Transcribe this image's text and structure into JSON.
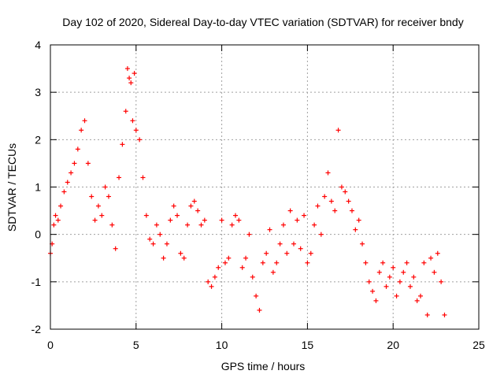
{
  "chart_data": {
    "type": "scatter",
    "title": "Day 102 of 2020, Sidereal Day-to-day VTEC variation (SDTVAR) for receiver bndy",
    "xlabel": "GPS time / hours",
    "ylabel": "SDTVAR / TECUs",
    "xlim": [
      0,
      25
    ],
    "ylim": [
      -2,
      4
    ],
    "xticks": [
      0,
      5,
      10,
      15,
      20,
      25
    ],
    "yticks": [
      -2,
      -1,
      0,
      1,
      2,
      3,
      4
    ],
    "grid": true,
    "marker": "+",
    "series": [
      {
        "name": "SDTVAR",
        "color": "#ff0000",
        "x": [
          0.0,
          0.1,
          0.2,
          0.3,
          0.45,
          0.6,
          0.8,
          1.0,
          1.2,
          1.4,
          1.6,
          1.8,
          2.0,
          2.2,
          2.4,
          2.6,
          2.8,
          3.0,
          3.2,
          3.4,
          3.6,
          3.8,
          4.0,
          4.2,
          4.4,
          4.5,
          4.6,
          4.7,
          4.8,
          4.9,
          5.0,
          5.2,
          5.4,
          5.6,
          5.8,
          6.0,
          6.2,
          6.4,
          6.6,
          6.8,
          7.0,
          7.2,
          7.4,
          7.6,
          7.8,
          8.0,
          8.2,
          8.4,
          8.6,
          8.8,
          9.0,
          9.2,
          9.4,
          9.6,
          9.8,
          10.0,
          10.2,
          10.4,
          10.6,
          10.8,
          11.0,
          11.2,
          11.4,
          11.6,
          11.8,
          12.0,
          12.2,
          12.4,
          12.6,
          12.8,
          13.0,
          13.2,
          13.4,
          13.6,
          13.8,
          14.0,
          14.2,
          14.4,
          14.6,
          14.8,
          15.0,
          15.2,
          15.4,
          15.6,
          15.8,
          16.0,
          16.2,
          16.4,
          16.6,
          16.8,
          17.0,
          17.2,
          17.4,
          17.6,
          17.8,
          18.0,
          18.2,
          18.4,
          18.6,
          18.8,
          19.0,
          19.2,
          19.4,
          19.6,
          19.8,
          20.0,
          20.2,
          20.4,
          20.6,
          20.8,
          21.0,
          21.2,
          21.4,
          21.6,
          21.8,
          22.0,
          22.2,
          22.4,
          22.6,
          22.8,
          23.0
        ],
        "y": [
          -0.4,
          -0.2,
          0.2,
          0.4,
          0.3,
          0.6,
          0.9,
          1.1,
          1.3,
          1.5,
          1.8,
          2.2,
          2.4,
          1.5,
          0.8,
          0.3,
          0.6,
          0.4,
          1.0,
          0.8,
          0.2,
          -0.3,
          1.2,
          1.9,
          2.6,
          3.5,
          3.3,
          3.2,
          2.4,
          3.4,
          2.2,
          2.0,
          1.2,
          0.4,
          -0.1,
          -0.2,
          0.2,
          0.0,
          -0.5,
          -0.2,
          0.3,
          0.6,
          0.4,
          -0.4,
          -0.5,
          0.2,
          0.6,
          0.7,
          0.5,
          0.2,
          0.3,
          -1.0,
          -1.1,
          -0.9,
          -0.7,
          0.3,
          -0.6,
          -0.5,
          0.2,
          0.4,
          0.3,
          -0.7,
          -0.5,
          0.0,
          -0.9,
          -1.3,
          -1.6,
          -0.6,
          -0.4,
          0.1,
          -0.8,
          -0.6,
          -0.2,
          0.2,
          -0.4,
          0.5,
          -0.2,
          0.3,
          -0.3,
          0.4,
          -0.6,
          -0.4,
          0.2,
          0.6,
          0.0,
          0.8,
          1.3,
          0.7,
          0.5,
          2.2,
          1.0,
          0.9,
          0.7,
          0.5,
          0.1,
          0.3,
          -0.2,
          -0.6,
          -1.0,
          -1.2,
          -1.4,
          -0.8,
          -0.6,
          -1.1,
          -0.9,
          -0.7,
          -1.3,
          -1.0,
          -0.8,
          -0.6,
          -1.1,
          -0.9,
          -1.4,
          -1.3,
          -0.6,
          -1.7,
          -0.5,
          -0.8,
          -0.4,
          -1.0,
          -1.7
        ]
      }
    ]
  }
}
